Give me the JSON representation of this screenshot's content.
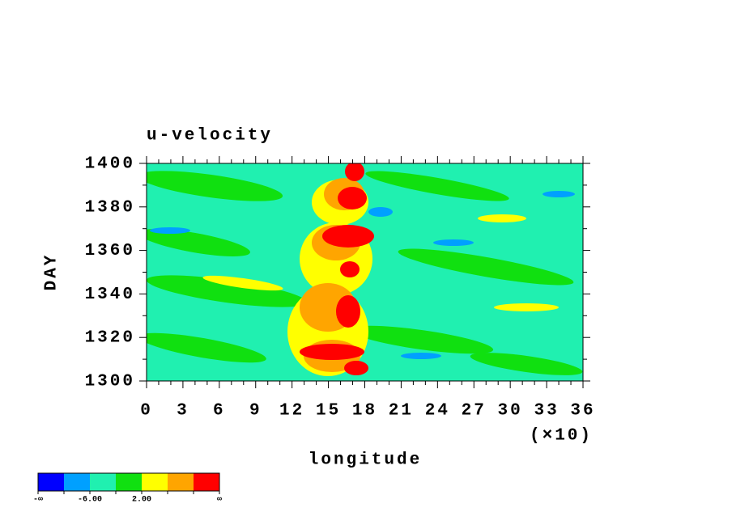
{
  "chart_data": {
    "type": "contour",
    "title": "u-velocity",
    "x_label": "longitude",
    "y_label": "DAY",
    "x_scale_label": "(×10)",
    "xlim": [
      0,
      36
    ],
    "xticks": [
      0,
      3,
      6,
      9,
      12,
      15,
      18,
      21,
      24,
      27,
      30,
      33,
      36
    ],
    "ylim": [
      1300,
      1400
    ],
    "yticks": [
      1300,
      1320,
      1340,
      1360,
      1380,
      1400
    ],
    "colorbar": {
      "colors": [
        "#0000ff",
        "#00a0ff",
        "#20f0b0",
        "#10e010",
        "#ffff00",
        "#ffa500",
        "#ff0000"
      ],
      "labels": [
        "-∞",
        null,
        "-6.00",
        null,
        "2.00",
        null,
        null,
        "∞"
      ]
    }
  }
}
